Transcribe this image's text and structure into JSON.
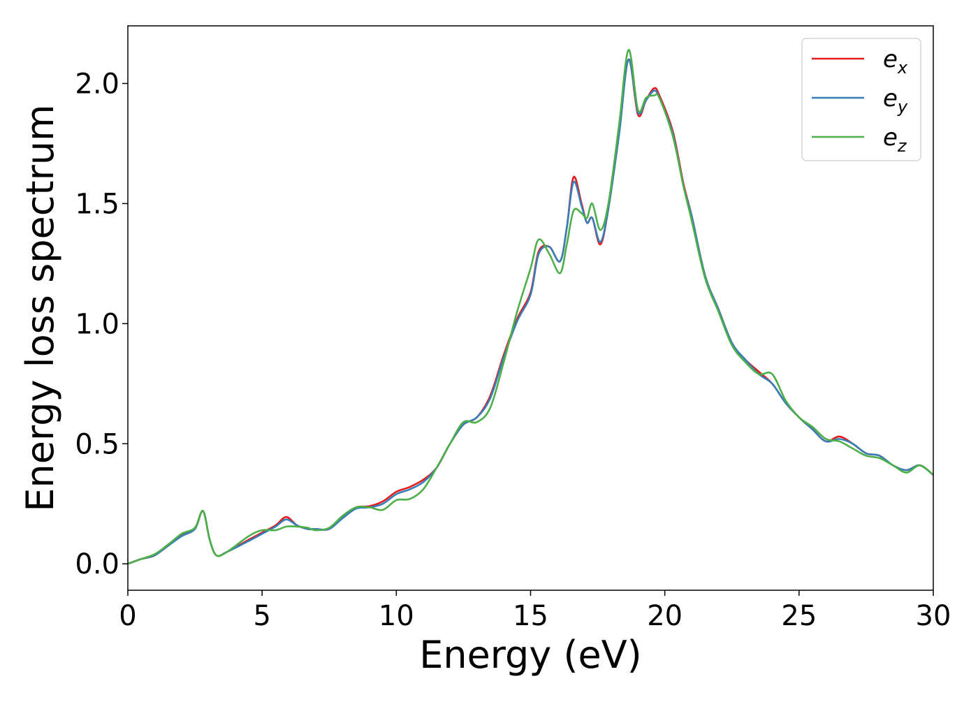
{
  "chart_data": {
    "type": "line",
    "title": "",
    "xlabel": "Energy (eV)",
    "ylabel": "Energy loss spectrum",
    "xlim": [
      0,
      30
    ],
    "ylim": [
      -0.11,
      2.24
    ],
    "xticks": [
      0,
      5,
      10,
      15,
      20,
      25,
      30
    ],
    "yticks": [
      0.0,
      0.5,
      1.0,
      1.5,
      2.0
    ],
    "xtick_labels": [
      "0",
      "5",
      "10",
      "15",
      "20",
      "25",
      "30"
    ],
    "ytick_labels": [
      "0.0",
      "0.5",
      "1.0",
      "1.5",
      "2.0"
    ],
    "grid": false,
    "legend_position": "top-right",
    "series": [
      {
        "name": "e_x",
        "legend_base": "e",
        "legend_sub": "x",
        "color": "#e41a1c",
        "points": [
          [
            0,
            0.0
          ],
          [
            0.5,
            0.02
          ],
          [
            1,
            0.035
          ],
          [
            1.5,
            0.08
          ],
          [
            2,
            0.12
          ],
          [
            2.5,
            0.15
          ],
          [
            2.8,
            0.22
          ],
          [
            3.05,
            0.1
          ],
          [
            3.3,
            0.035
          ],
          [
            3.7,
            0.05
          ],
          [
            4.5,
            0.1
          ],
          [
            5,
            0.13
          ],
          [
            5.5,
            0.16
          ],
          [
            5.9,
            0.195
          ],
          [
            6.3,
            0.16
          ],
          [
            6.7,
            0.145
          ],
          [
            7,
            0.145
          ],
          [
            7.5,
            0.145
          ],
          [
            8,
            0.195
          ],
          [
            8.5,
            0.235
          ],
          [
            9,
            0.24
          ],
          [
            9.5,
            0.26
          ],
          [
            10,
            0.3
          ],
          [
            10.5,
            0.32
          ],
          [
            11,
            0.35
          ],
          [
            11.5,
            0.4
          ],
          [
            12,
            0.5
          ],
          [
            12.5,
            0.58
          ],
          [
            13,
            0.61
          ],
          [
            13.5,
            0.7
          ],
          [
            14,
            0.87
          ],
          [
            14.5,
            1.02
          ],
          [
            15,
            1.13
          ],
          [
            15.3,
            1.3
          ],
          [
            15.7,
            1.32
          ],
          [
            16.1,
            1.26
          ],
          [
            16.35,
            1.4
          ],
          [
            16.6,
            1.61
          ],
          [
            16.9,
            1.5
          ],
          [
            17.1,
            1.42
          ],
          [
            17.3,
            1.44
          ],
          [
            17.6,
            1.33
          ],
          [
            17.9,
            1.48
          ],
          [
            18.3,
            1.8
          ],
          [
            18.65,
            2.1
          ],
          [
            19.0,
            1.87
          ],
          [
            19.3,
            1.93
          ],
          [
            19.6,
            1.98
          ],
          [
            19.8,
            1.95
          ],
          [
            20.3,
            1.8
          ],
          [
            20.7,
            1.58
          ],
          [
            21.0,
            1.45
          ],
          [
            21.5,
            1.2
          ],
          [
            22,
            1.06
          ],
          [
            22.5,
            0.92
          ],
          [
            23,
            0.85
          ],
          [
            23.5,
            0.8
          ],
          [
            24,
            0.75
          ],
          [
            24.5,
            0.67
          ],
          [
            25,
            0.61
          ],
          [
            25.5,
            0.56
          ],
          [
            26,
            0.51
          ],
          [
            26.5,
            0.53
          ],
          [
            27,
            0.5
          ],
          [
            27.5,
            0.46
          ],
          [
            28,
            0.45
          ],
          [
            28.5,
            0.41
          ],
          [
            29,
            0.39
          ],
          [
            29.5,
            0.41
          ],
          [
            30,
            0.37
          ]
        ]
      },
      {
        "name": "e_y",
        "legend_base": "e",
        "legend_sub": "y",
        "color": "#377eb8",
        "points": [
          [
            0,
            0.0
          ],
          [
            0.5,
            0.02
          ],
          [
            1,
            0.035
          ],
          [
            1.5,
            0.075
          ],
          [
            2,
            0.115
          ],
          [
            2.5,
            0.145
          ],
          [
            2.8,
            0.22
          ],
          [
            3.05,
            0.1
          ],
          [
            3.3,
            0.035
          ],
          [
            3.7,
            0.05
          ],
          [
            4.5,
            0.095
          ],
          [
            5,
            0.125
          ],
          [
            5.5,
            0.155
          ],
          [
            5.9,
            0.185
          ],
          [
            6.3,
            0.16
          ],
          [
            6.7,
            0.145
          ],
          [
            7,
            0.145
          ],
          [
            7.5,
            0.145
          ],
          [
            8,
            0.19
          ],
          [
            8.5,
            0.23
          ],
          [
            9,
            0.235
          ],
          [
            9.5,
            0.25
          ],
          [
            10,
            0.29
          ],
          [
            10.5,
            0.31
          ],
          [
            11,
            0.34
          ],
          [
            11.5,
            0.4
          ],
          [
            12,
            0.5
          ],
          [
            12.5,
            0.58
          ],
          [
            13,
            0.61
          ],
          [
            13.5,
            0.69
          ],
          [
            14,
            0.86
          ],
          [
            14.5,
            1.01
          ],
          [
            15,
            1.12
          ],
          [
            15.3,
            1.29
          ],
          [
            15.7,
            1.32
          ],
          [
            16.1,
            1.26
          ],
          [
            16.35,
            1.4
          ],
          [
            16.6,
            1.59
          ],
          [
            16.9,
            1.49
          ],
          [
            17.1,
            1.42
          ],
          [
            17.3,
            1.44
          ],
          [
            17.6,
            1.34
          ],
          [
            17.9,
            1.48
          ],
          [
            18.3,
            1.79
          ],
          [
            18.65,
            2.1
          ],
          [
            19.0,
            1.88
          ],
          [
            19.3,
            1.93
          ],
          [
            19.6,
            1.97
          ],
          [
            19.8,
            1.94
          ],
          [
            20.3,
            1.79
          ],
          [
            20.7,
            1.57
          ],
          [
            21.0,
            1.45
          ],
          [
            21.5,
            1.2
          ],
          [
            22,
            1.06
          ],
          [
            22.5,
            0.92
          ],
          [
            23,
            0.85
          ],
          [
            23.5,
            0.79
          ],
          [
            24,
            0.75
          ],
          [
            24.5,
            0.67
          ],
          [
            25,
            0.61
          ],
          [
            25.5,
            0.56
          ],
          [
            26,
            0.51
          ],
          [
            26.5,
            0.52
          ],
          [
            27,
            0.5
          ],
          [
            27.5,
            0.46
          ],
          [
            28,
            0.45
          ],
          [
            28.5,
            0.41
          ],
          [
            29,
            0.39
          ],
          [
            29.5,
            0.41
          ],
          [
            30,
            0.37
          ]
        ]
      },
      {
        "name": "e_z",
        "legend_base": "e",
        "legend_sub": "z",
        "color": "#4daf4a",
        "points": [
          [
            0,
            0.0
          ],
          [
            0.5,
            0.02
          ],
          [
            1,
            0.04
          ],
          [
            1.5,
            0.08
          ],
          [
            2,
            0.125
          ],
          [
            2.5,
            0.15
          ],
          [
            2.8,
            0.22
          ],
          [
            3.05,
            0.1
          ],
          [
            3.3,
            0.035
          ],
          [
            3.7,
            0.05
          ],
          [
            4.5,
            0.115
          ],
          [
            5,
            0.14
          ],
          [
            5.5,
            0.14
          ],
          [
            5.9,
            0.155
          ],
          [
            6.3,
            0.155
          ],
          [
            6.7,
            0.15
          ],
          [
            7,
            0.14
          ],
          [
            7.5,
            0.15
          ],
          [
            8,
            0.2
          ],
          [
            8.5,
            0.235
          ],
          [
            9,
            0.235
          ],
          [
            9.5,
            0.225
          ],
          [
            10,
            0.265
          ],
          [
            10.5,
            0.27
          ],
          [
            11,
            0.31
          ],
          [
            11.5,
            0.4
          ],
          [
            12,
            0.5
          ],
          [
            12.5,
            0.59
          ],
          [
            13,
            0.59
          ],
          [
            13.5,
            0.65
          ],
          [
            14,
            0.84
          ],
          [
            14.5,
            1.05
          ],
          [
            15,
            1.23
          ],
          [
            15.3,
            1.35
          ],
          [
            15.7,
            1.29
          ],
          [
            16.1,
            1.21
          ],
          [
            16.35,
            1.33
          ],
          [
            16.6,
            1.47
          ],
          [
            16.9,
            1.46
          ],
          [
            17.1,
            1.44
          ],
          [
            17.3,
            1.5
          ],
          [
            17.6,
            1.39
          ],
          [
            17.9,
            1.5
          ],
          [
            18.3,
            1.83
          ],
          [
            18.65,
            2.14
          ],
          [
            19.0,
            1.89
          ],
          [
            19.3,
            1.94
          ],
          [
            19.6,
            1.95
          ],
          [
            19.8,
            1.94
          ],
          [
            20.3,
            1.78
          ],
          [
            20.7,
            1.57
          ],
          [
            21.0,
            1.43
          ],
          [
            21.5,
            1.19
          ],
          [
            22,
            1.05
          ],
          [
            22.5,
            0.91
          ],
          [
            23,
            0.84
          ],
          [
            23.5,
            0.79
          ],
          [
            24,
            0.79
          ],
          [
            24.5,
            0.68
          ],
          [
            25,
            0.61
          ],
          [
            25.5,
            0.57
          ],
          [
            26,
            0.52
          ],
          [
            26.5,
            0.51
          ],
          [
            27,
            0.48
          ],
          [
            27.5,
            0.45
          ],
          [
            28,
            0.44
          ],
          [
            28.5,
            0.41
          ],
          [
            29,
            0.38
          ],
          [
            29.5,
            0.41
          ],
          [
            30,
            0.37
          ]
        ]
      }
    ]
  }
}
